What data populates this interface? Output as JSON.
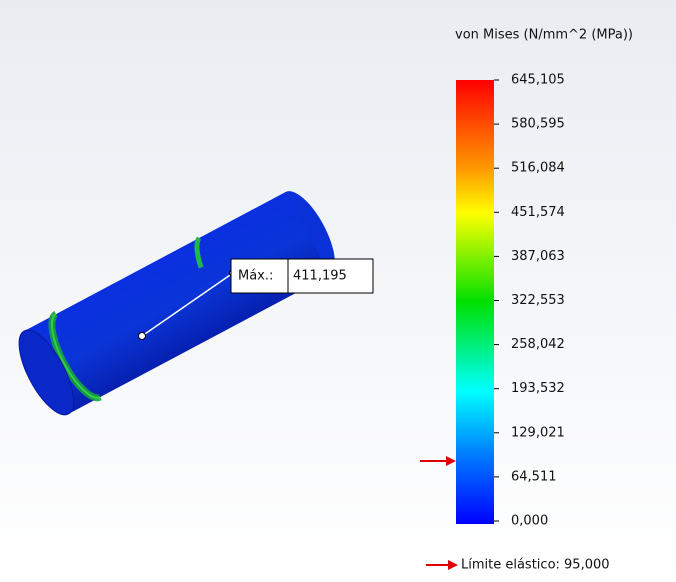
{
  "legend": {
    "title": "von Mises (N/mm^2 (MPa))",
    "ticks": [
      "645,105",
      "580,595",
      "516,084",
      "451,574",
      "387,063",
      "322,553",
      "258,042",
      "193,532",
      "129,021",
      "64,511",
      "0,000"
    ]
  },
  "probe": {
    "label": "Máx.:",
    "value": "411,195"
  },
  "yield_limit": {
    "label": "Límite elástico: 95,000"
  }
}
